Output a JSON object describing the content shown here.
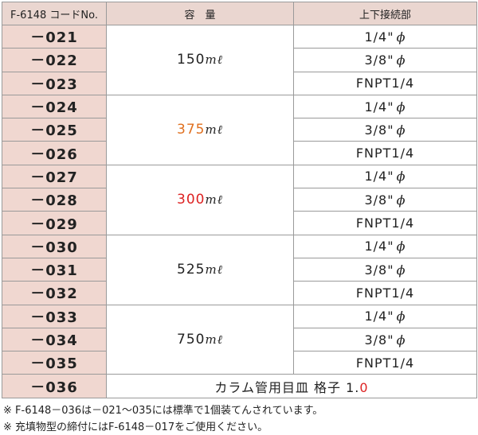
{
  "headers": [
    "F-6148 コードNo.",
    "容　量",
    "上下接続部"
  ],
  "groups": [
    {
      "capacity": "150",
      "unit": "mℓ",
      "color": "#222222",
      "rows": [
        {
          "code": "－021",
          "conn": "1/4\"",
          "phi": "ϕ"
        },
        {
          "code": "－022",
          "conn": "3/8\"",
          "phi": "ϕ"
        },
        {
          "code": "－023",
          "conn": "FNPT1/4",
          "phi": ""
        }
      ]
    },
    {
      "capacity": "375",
      "unit": "mℓ",
      "color": "#e07020",
      "rows": [
        {
          "code": "－024",
          "conn": "1/4\"",
          "phi": "ϕ"
        },
        {
          "code": "－025",
          "conn": "3/8\"",
          "phi": "ϕ"
        },
        {
          "code": "－026",
          "conn": "FNPT1/4",
          "phi": ""
        }
      ]
    },
    {
      "capacity": "300",
      "unit": "mℓ",
      "color": "#dd2222",
      "rows": [
        {
          "code": "－027",
          "conn": "1/4\"",
          "phi": "ϕ"
        },
        {
          "code": "－028",
          "conn": "3/8\"",
          "phi": "ϕ"
        },
        {
          "code": "－029",
          "conn": "FNPT1/4",
          "phi": ""
        }
      ]
    },
    {
      "capacity": "525",
      "unit": "mℓ",
      "color": "#222222",
      "rows": [
        {
          "code": "－030",
          "conn": "1/4\"",
          "phi": "ϕ"
        },
        {
          "code": "－031",
          "conn": "3/8\"",
          "phi": "ϕ"
        },
        {
          "code": "－032",
          "conn": "FNPT1/4",
          "phi": ""
        }
      ]
    },
    {
      "capacity": "750",
      "unit": "mℓ",
      "color": "#222222",
      "rows": [
        {
          "code": "－033",
          "conn": "1/4\"",
          "phi": "ϕ"
        },
        {
          "code": "－034",
          "conn": "3/8\"",
          "phi": "ϕ"
        },
        {
          "code": "－035",
          "conn": "FNPT1/4",
          "phi": ""
        }
      ]
    }
  ],
  "last_row": {
    "code": "－036",
    "text": "カラム管用目皿 格子 1.",
    "highlight": "0",
    "highlight_color": "#dd2222"
  },
  "notes": [
    "※ F-6148－036は－021～035には標準で1個装てんされています。",
    "※ 充填物型の締付にはF-6148－017をご使用ください。"
  ]
}
